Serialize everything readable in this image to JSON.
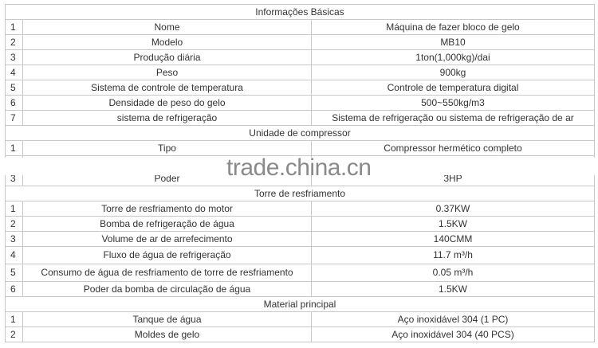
{
  "sections": [
    {
      "title": "Informações Básicas",
      "rows": [
        {
          "n": "1",
          "k": "Nome",
          "v": "Máquina de fazer bloco de gelo"
        },
        {
          "n": "2",
          "k": "Modelo",
          "v": "MB10"
        },
        {
          "n": "3",
          "k": "Produção diária",
          "v": "1ton(1,000kg)/dai"
        },
        {
          "n": "4",
          "k": "Peso",
          "v": "900kg"
        },
        {
          "n": "5",
          "k": "Sistema de controle de temperatura",
          "v": "Controle de temperatura digital"
        },
        {
          "n": "6",
          "k": "Densidade de peso do gelo",
          "v": "500~550kg/m3"
        },
        {
          "n": "7",
          "k": "sistema de refrigeração",
          "v": "Sistema de refrigeração ou sistema de refrigeração de ar"
        }
      ]
    },
    {
      "title": "Unidade de compressor",
      "rows": [
        {
          "n": "1",
          "k": "Tipo",
          "v": "Compressor hermético completo"
        },
        {
          "n": "",
          "k": "",
          "v": ""
        },
        {
          "n": "3",
          "k": "Poder",
          "v": "3HP"
        }
      ]
    },
    {
      "title": "Torre de resfriamento",
      "rows": [
        {
          "n": "1",
          "k": "Torre de resfriamento do motor",
          "v": "0.37KW"
        },
        {
          "n": "2",
          "k": "Bomba de refrigeração de água",
          "v": "1.5KW"
        },
        {
          "n": "3",
          "k": "Volume de ar de arrefecimento",
          "v": "140CMM"
        },
        {
          "n": "4",
          "k": "Fluxo de água de refrigeração",
          "v": "11.7 m³/h",
          "tall": true
        },
        {
          "n": "5",
          "k": "Consumo de água de resfriamento de torre de resfriamento",
          "v": "0.05 m³/h",
          "tall": true
        },
        {
          "n": "6",
          "k": "Poder da bomba de circulação de água",
          "v": "1.5KW"
        }
      ]
    },
    {
      "title": "Material principal",
      "rows": [
        {
          "n": "1",
          "k": "Tanque de água",
          "v": "Aço inoxidável 304 (1 PC)"
        },
        {
          "n": "2",
          "k": "Moldes de gelo",
          "v": "Aço inoxidável 304 (40 PCS)"
        }
      ]
    }
  ],
  "watermark": "trade.china.cn"
}
